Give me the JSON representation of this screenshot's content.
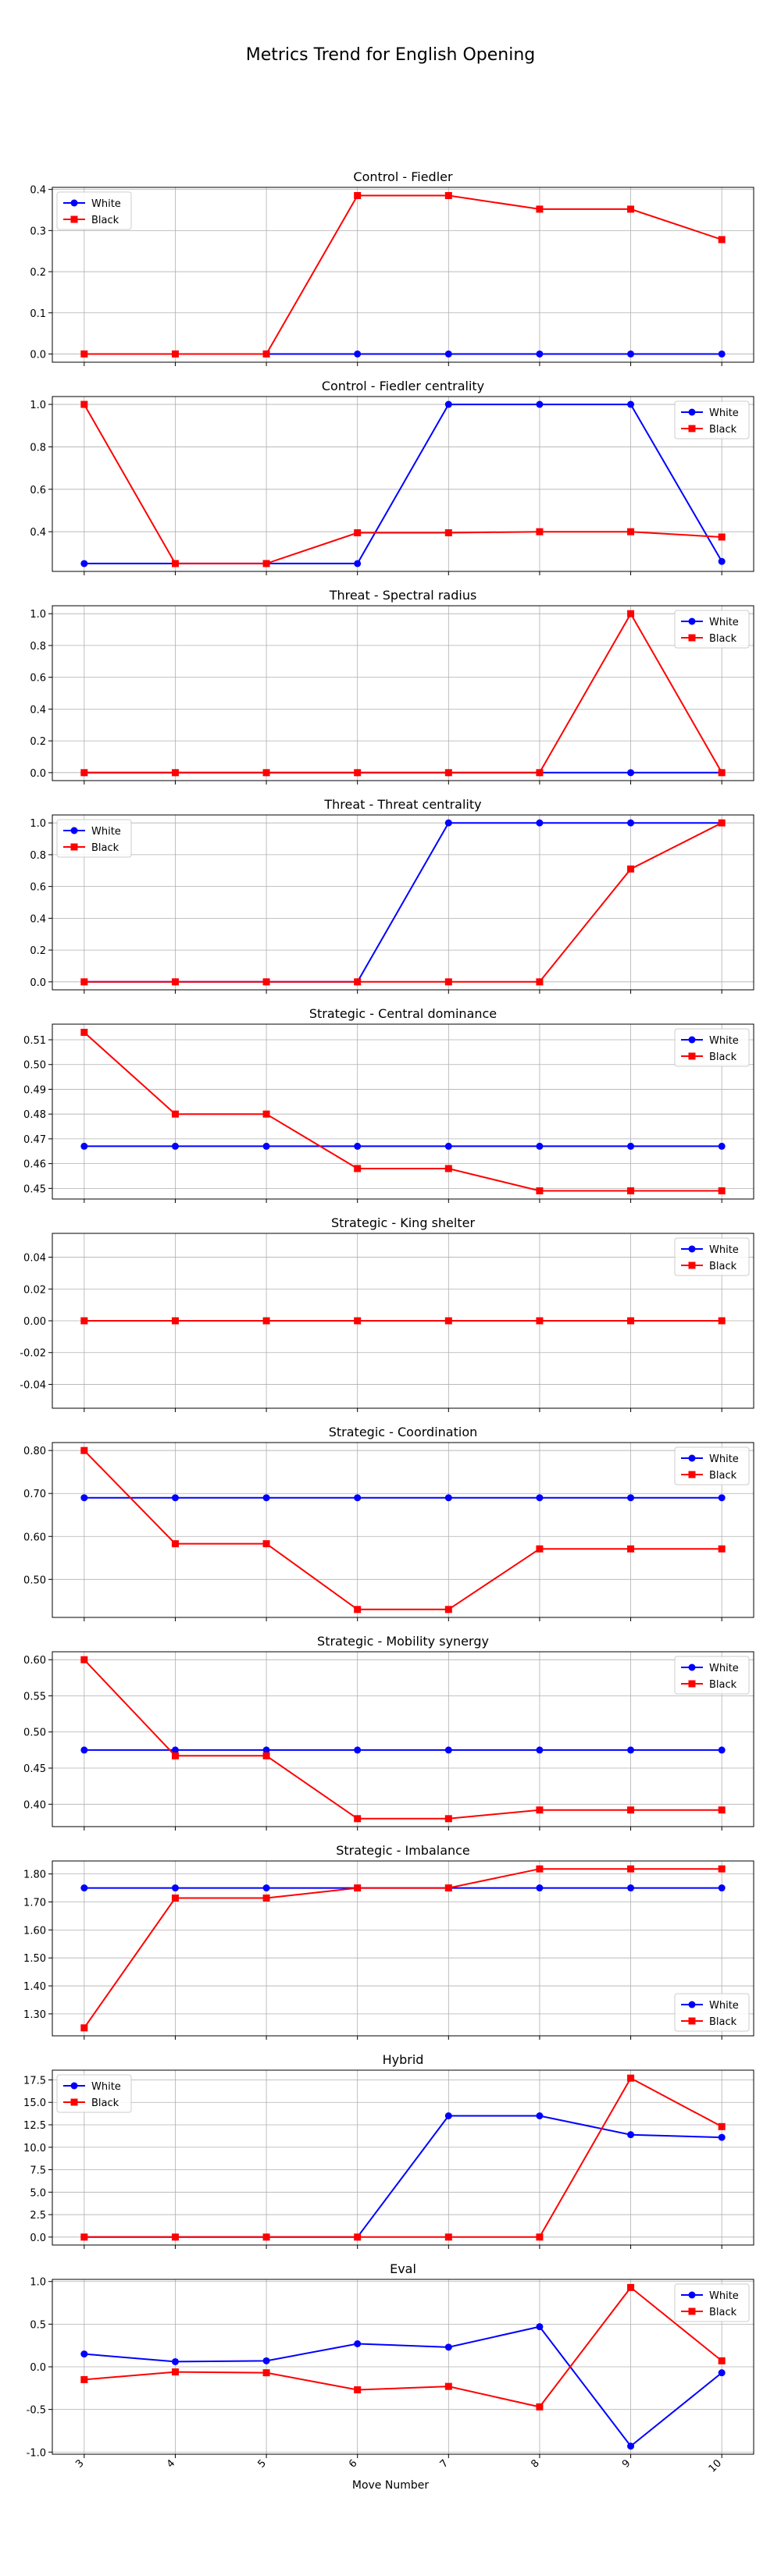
{
  "page_title": "Metrics Trend for English Opening",
  "xlabel": "Move Number",
  "colors": {
    "white": "#0000ff",
    "black": "#ff0000",
    "grid": "#b0b0b0",
    "axes": "#000000"
  },
  "chart_data": [
    {
      "type": "line",
      "title": "Control - Fiedler",
      "x": [
        3,
        4,
        5,
        6,
        7,
        8,
        9,
        10
      ],
      "series": [
        {
          "name": "White",
          "values": [
            0,
            0,
            0,
            0,
            0,
            0,
            0,
            0
          ]
        },
        {
          "name": "Black",
          "values": [
            0,
            0,
            0,
            0.385,
            0.385,
            0.352,
            0.352,
            0.278
          ]
        }
      ],
      "yticks": [
        0.0,
        0.1,
        0.2,
        0.3,
        0.4
      ],
      "ylim": [
        -0.02,
        0.405
      ],
      "legend": "upper left",
      "grid": true
    },
    {
      "type": "line",
      "title": "Control - Fiedler centrality",
      "x": [
        3,
        4,
        5,
        6,
        7,
        8,
        9,
        10
      ],
      "series": [
        {
          "name": "White",
          "values": [
            0.25,
            0.25,
            0.25,
            0.25,
            1.0,
            1.0,
            1.0,
            0.26
          ]
        },
        {
          "name": "Black",
          "values": [
            1.0,
            0.25,
            0.25,
            0.395,
            0.395,
            0.4,
            0.4,
            0.375
          ]
        }
      ],
      "yticks": [
        0.4,
        0.6,
        0.8,
        1.0
      ],
      "ylim": [
        0.213,
        1.037
      ],
      "legend": "upper right",
      "grid": true
    },
    {
      "type": "line",
      "title": "Threat - Spectral radius",
      "x": [
        3,
        4,
        5,
        6,
        7,
        8,
        9,
        10
      ],
      "series": [
        {
          "name": "White",
          "values": [
            0,
            0,
            0,
            0,
            0,
            0,
            0,
            0
          ]
        },
        {
          "name": "Black",
          "values": [
            0,
            0,
            0,
            0,
            0,
            0,
            1.0,
            0
          ]
        }
      ],
      "yticks": [
        0.0,
        0.2,
        0.4,
        0.6,
        0.8,
        1.0
      ],
      "ylim": [
        -0.05,
        1.05
      ],
      "legend": "upper right",
      "grid": true
    },
    {
      "type": "line",
      "title": "Threat - Threat centrality",
      "x": [
        3,
        4,
        5,
        6,
        7,
        8,
        9,
        10
      ],
      "series": [
        {
          "name": "White",
          "values": [
            0,
            0,
            0,
            0,
            1.0,
            1.0,
            1.0,
            1.0
          ]
        },
        {
          "name": "Black",
          "values": [
            0,
            0,
            0,
            0,
            0,
            0,
            0.71,
            1.0
          ]
        }
      ],
      "yticks": [
        0.0,
        0.2,
        0.4,
        0.6,
        0.8,
        1.0
      ],
      "ylim": [
        -0.05,
        1.05
      ],
      "legend": "upper left",
      "grid": true
    },
    {
      "type": "line",
      "title": "Strategic - Central dominance",
      "x": [
        3,
        4,
        5,
        6,
        7,
        8,
        9,
        10
      ],
      "series": [
        {
          "name": "White",
          "values": [
            0.467,
            0.467,
            0.467,
            0.467,
            0.467,
            0.467,
            0.467,
            0.467
          ]
        },
        {
          "name": "Black",
          "values": [
            0.513,
            0.48,
            0.48,
            0.458,
            0.458,
            0.449,
            0.449,
            0.449
          ]
        }
      ],
      "yticks": [
        0.45,
        0.46,
        0.47,
        0.48,
        0.49,
        0.5,
        0.51
      ],
      "ylim": [
        0.4457,
        0.5163
      ],
      "legend": "upper right",
      "grid": true
    },
    {
      "type": "line",
      "title": "Strategic - King shelter",
      "x": [
        3,
        4,
        5,
        6,
        7,
        8,
        9,
        10
      ],
      "series": [
        {
          "name": "White",
          "values": [
            0,
            0,
            0,
            0,
            0,
            0,
            0,
            0
          ]
        },
        {
          "name": "Black",
          "values": [
            0,
            0,
            0,
            0,
            0,
            0,
            0,
            0
          ]
        }
      ],
      "yticks": [
        -0.04,
        -0.02,
        0.0,
        0.02,
        0.04
      ],
      "ylim": [
        -0.055,
        0.055
      ],
      "legend": "upper right",
      "grid": true
    },
    {
      "type": "line",
      "title": "Strategic - Coordination",
      "x": [
        3,
        4,
        5,
        6,
        7,
        8,
        9,
        10
      ],
      "series": [
        {
          "name": "White",
          "values": [
            0.69,
            0.69,
            0.69,
            0.69,
            0.69,
            0.69,
            0.69,
            0.69
          ]
        },
        {
          "name": "Black",
          "values": [
            0.8,
            0.583,
            0.583,
            0.43,
            0.43,
            0.571,
            0.571,
            0.571
          ]
        }
      ],
      "yticks": [
        0.5,
        0.6,
        0.7,
        0.8
      ],
      "ylim": [
        0.4115,
        0.8185
      ],
      "legend": "upper right",
      "grid": true
    },
    {
      "type": "line",
      "title": "Strategic - Mobility synergy",
      "x": [
        3,
        4,
        5,
        6,
        7,
        8,
        9,
        10
      ],
      "series": [
        {
          "name": "White",
          "values": [
            0.475,
            0.475,
            0.475,
            0.475,
            0.475,
            0.475,
            0.475,
            0.475
          ]
        },
        {
          "name": "Black",
          "values": [
            0.6,
            0.467,
            0.467,
            0.38,
            0.38,
            0.392,
            0.392,
            0.392
          ]
        }
      ],
      "yticks": [
        0.4,
        0.45,
        0.5,
        0.55,
        0.6
      ],
      "ylim": [
        0.369,
        0.611
      ],
      "legend": "upper right",
      "grid": true
    },
    {
      "type": "line",
      "title": "Strategic - Imbalance",
      "x": [
        3,
        4,
        5,
        6,
        7,
        8,
        9,
        10
      ],
      "series": [
        {
          "name": "White",
          "values": [
            1.75,
            1.75,
            1.75,
            1.75,
            1.75,
            1.75,
            1.75,
            1.75
          ]
        },
        {
          "name": "Black",
          "values": [
            1.25,
            1.714,
            1.714,
            1.75,
            1.75,
            1.818,
            1.818,
            1.818
          ]
        }
      ],
      "yticks": [
        1.3,
        1.4,
        1.5,
        1.6,
        1.7,
        1.8
      ],
      "ylim": [
        1.2216,
        1.8464
      ],
      "legend": "lower right",
      "grid": true
    },
    {
      "type": "line",
      "title": "Hybrid",
      "x": [
        3,
        4,
        5,
        6,
        7,
        8,
        9,
        10
      ],
      "series": [
        {
          "name": "White",
          "values": [
            0,
            0,
            0,
            0,
            13.5,
            13.5,
            11.4,
            11.1
          ]
        },
        {
          "name": "Black",
          "values": [
            0,
            0,
            0,
            0,
            0,
            0,
            17.7,
            12.3
          ]
        }
      ],
      "yticks": [
        0.0,
        2.5,
        5.0,
        7.5,
        10.0,
        12.5,
        15.0,
        17.5
      ],
      "ylim": [
        -0.885,
        18.585
      ],
      "legend": "upper left",
      "grid": true
    },
    {
      "type": "line",
      "title": "Eval",
      "x": [
        3,
        4,
        5,
        6,
        7,
        8,
        9,
        10
      ],
      "series": [
        {
          "name": "White",
          "values": [
            0.15,
            0.06,
            0.07,
            0.27,
            0.23,
            0.47,
            -0.93,
            -0.07
          ]
        },
        {
          "name": "Black",
          "values": [
            -0.15,
            -0.06,
            -0.07,
            -0.27,
            -0.23,
            -0.47,
            0.93,
            0.07
          ]
        }
      ],
      "yticks": [
        -1.0,
        -0.5,
        0.0,
        0.5,
        1.0
      ],
      "ylim": [
        -1.025,
        1.025
      ],
      "legend": "upper right",
      "grid": true,
      "xticks": [
        "3",
        "4",
        "5",
        "6",
        "7",
        "8",
        "9",
        "10"
      ]
    }
  ]
}
